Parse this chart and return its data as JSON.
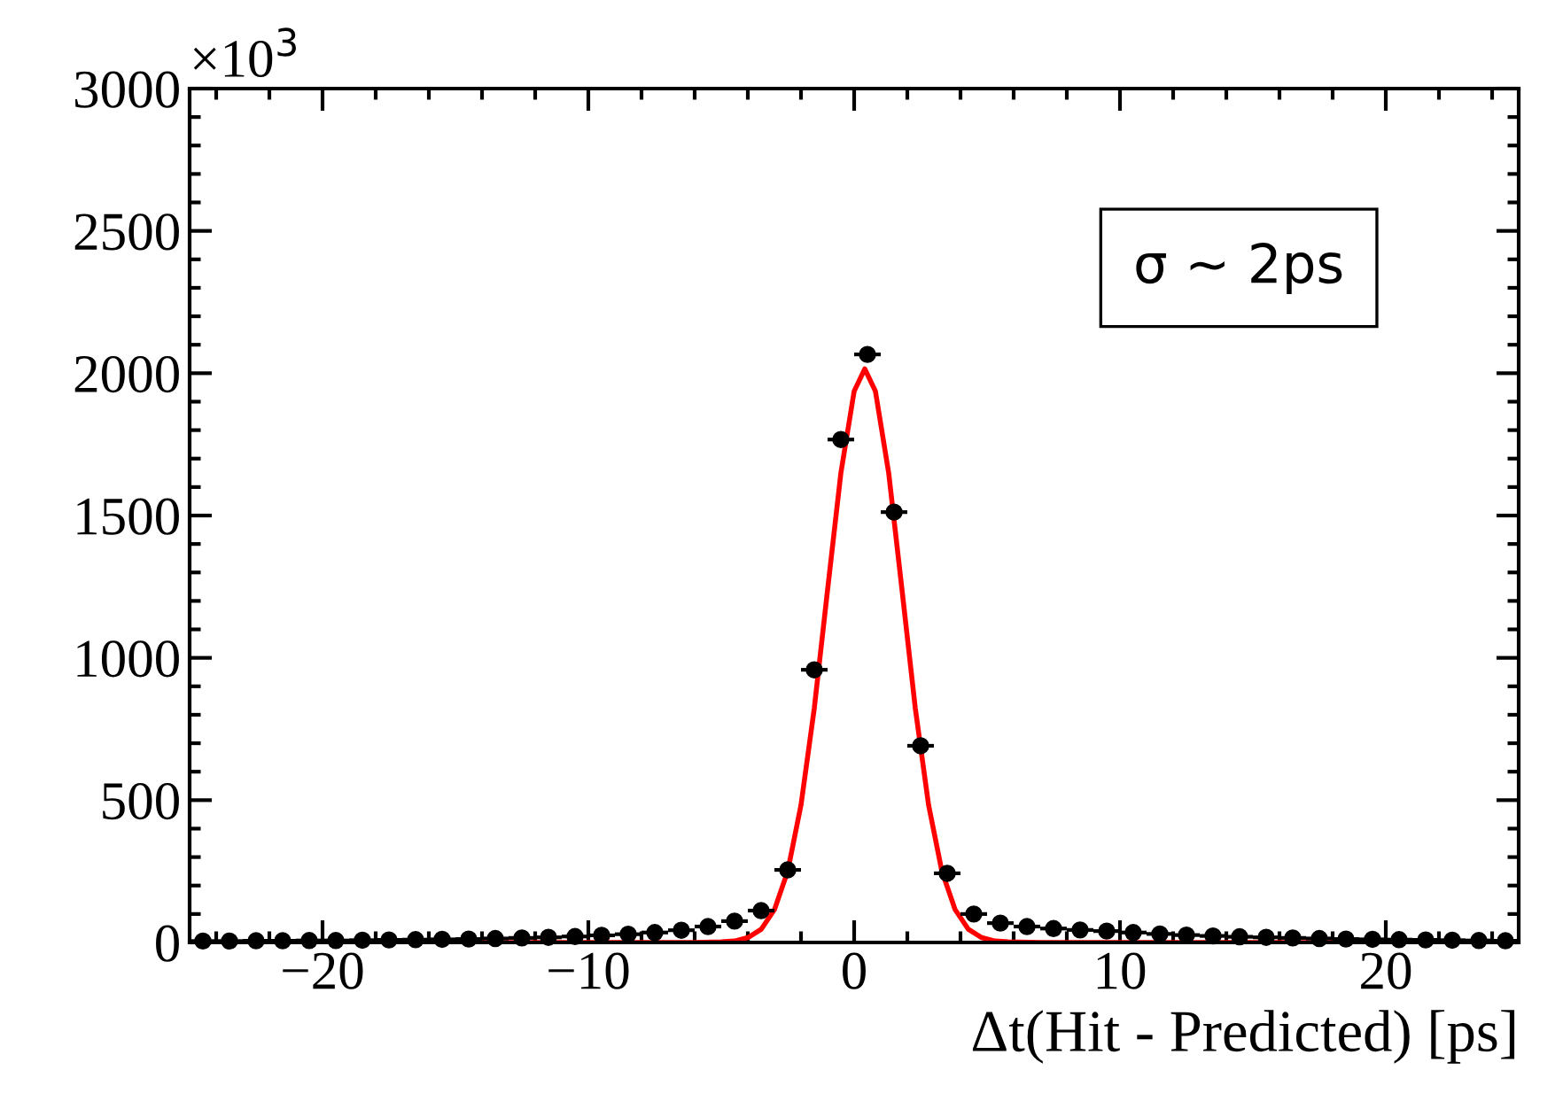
{
  "chart_data": {
    "type": "scatter",
    "xlabel": "Δt(Hit - Predicted) [ps]",
    "xlim": [
      -25,
      25
    ],
    "xticks": [
      {
        "value": -20,
        "label": "−20"
      },
      {
        "value": -10,
        "label": "−10"
      },
      0,
      10,
      20
    ],
    "ylim": [
      0,
      3000
    ],
    "yticks": [
      0,
      500,
      1000,
      1500,
      2000,
      2500,
      3000
    ],
    "grid": false,
    "annotations": [
      "×10$^{3}$",
      "σ ~ 2ps"
    ],
    "series": [
      {
        "color": "#000000",
        "marker": "circle",
        "x": [
          -24.5,
          -23.5,
          -22.5,
          -21.5,
          -20.5,
          -19.5,
          -18.5,
          -17.5,
          -16.5,
          -15.5,
          -14.5,
          -13.5,
          -12.5,
          -11.5,
          -10.5,
          -9.5,
          -8.5,
          -7.5,
          -6.5,
          -5.5,
          -4.5,
          -3.5,
          -2.5,
          -1.5,
          -0.5,
          0.5,
          1.5,
          2.5,
          3.5,
          4.5,
          5.5,
          6.5,
          7.5,
          8.5,
          9.5,
          10.5,
          11.5,
          12.5,
          13.5,
          14.5,
          15.5,
          16.5,
          17.5,
          18.5,
          19.5,
          20.5,
          21.5,
          22.5,
          23.5,
          24.5
        ],
        "values": [
          5,
          5,
          6,
          6,
          7,
          7,
          8,
          9,
          10,
          11,
          12,
          14,
          16,
          18,
          21,
          25,
          29,
          35,
          43,
          56,
          75,
          112,
          255,
          958,
          1767,
          2066,
          1512,
          691,
          243,
          100,
          68,
          56,
          49,
          44,
          40,
          35,
          30,
          26,
          23,
          20,
          18,
          16,
          14,
          12,
          11,
          10,
          9,
          8,
          7,
          6
        ],
        "xerrors": [
          0.5,
          0.5,
          0.5,
          0.5,
          0.5,
          0.5,
          0.5,
          0.5,
          0.5,
          0.5,
          0.5,
          0.5,
          0.5,
          0.5,
          0.5,
          0.5,
          0.5,
          0.5,
          0.5,
          0.5,
          0.5,
          0.5,
          0.5,
          0.5,
          0.5,
          0.5,
          0.5,
          0.5,
          0.5,
          0.5,
          0.5,
          0.5,
          0.5,
          0.5,
          0.5,
          0.5,
          0.5,
          0.5,
          0.5,
          0.5,
          0.5,
          0.5,
          0.5,
          0.5,
          0.5,
          0.5,
          0.5,
          0.5,
          0.5,
          0.5
        ]
      },
      {
        "type": "line",
        "color": "#ff0000",
        "marker": "none",
        "line_style": "solid",
        "x": [
          -25,
          -6,
          -5,
          -4.5,
          -4,
          -3.5,
          -3,
          -2.5,
          -2,
          -1.5,
          -1,
          -0.5,
          0,
          0.4,
          0.8,
          1.3,
          1.8,
          2.3,
          2.8,
          3.3,
          3.8,
          4.3,
          4.8,
          5.3,
          5.8,
          7,
          25
        ],
        "values": [
          0,
          0,
          2,
          5,
          17,
          46,
          115,
          250,
          483,
          823,
          1239,
          1649,
          1937,
          2015,
          1937,
          1649,
          1239,
          823,
          483,
          250,
          115,
          46,
          17,
          5,
          2,
          0,
          0
        ]
      }
    ]
  }
}
